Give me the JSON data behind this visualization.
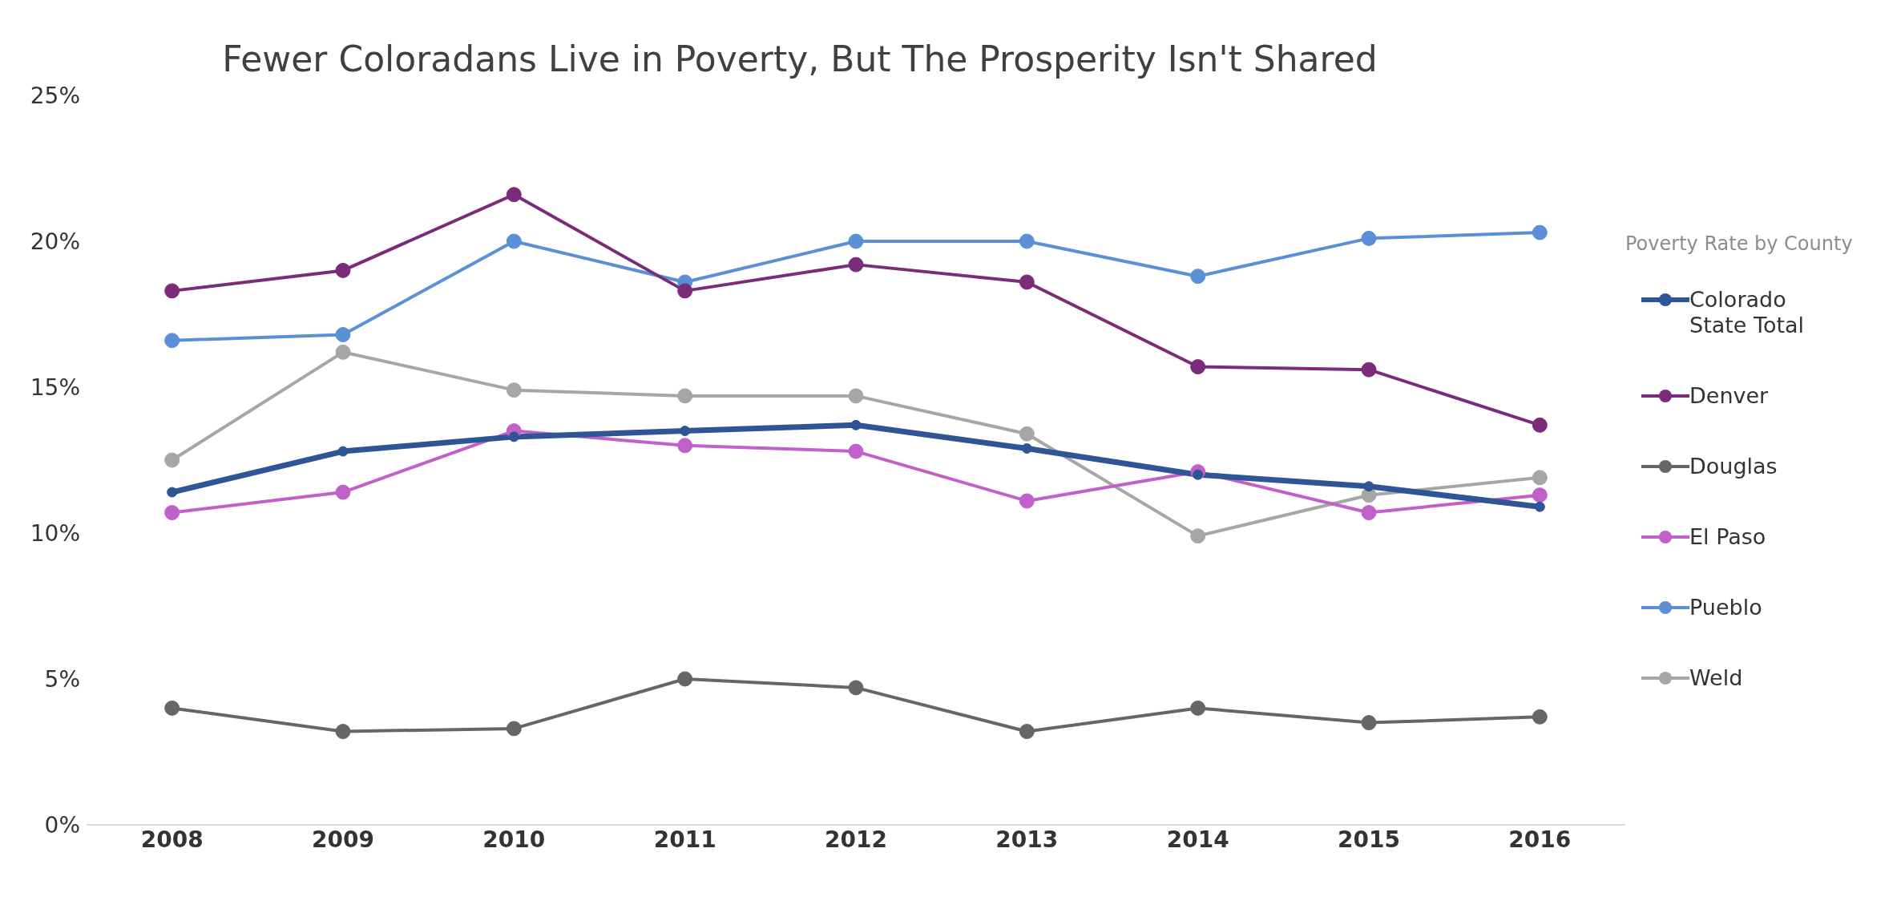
{
  "chart_data": {
    "type": "line",
    "title": "Fewer Coloradans Live in Poverty, But The Prosperity Isn't Shared",
    "legend_title": "Poverty Rate by County",
    "categories": [
      "2008",
      "2009",
      "2010",
      "2011",
      "2012",
      "2013",
      "2014",
      "2015",
      "2016"
    ],
    "series": [
      {
        "name": "Colorado State Total",
        "color": "#2e5596",
        "values": [
          11.4,
          12.8,
          13.3,
          13.5,
          13.7,
          12.9,
          12.0,
          11.6,
          10.9
        ]
      },
      {
        "name": "Denver",
        "color": "#7a2c7a",
        "values": [
          18.3,
          19.0,
          21.6,
          18.3,
          19.2,
          18.6,
          15.7,
          15.6,
          13.7
        ]
      },
      {
        "name": "Douglas",
        "color": "#666666",
        "values": [
          4.0,
          3.2,
          3.3,
          5.0,
          4.7,
          3.2,
          4.0,
          3.5,
          3.7
        ]
      },
      {
        "name": "El Paso",
        "color": "#c060c8",
        "values": [
          10.7,
          11.4,
          13.5,
          13.0,
          12.8,
          11.1,
          12.1,
          10.7,
          11.3
        ]
      },
      {
        "name": "Pueblo",
        "color": "#5b8fd6",
        "values": [
          16.6,
          16.8,
          20.0,
          18.6,
          20.0,
          20.0,
          18.8,
          20.1,
          20.3
        ]
      },
      {
        "name": "Weld",
        "color": "#a6a6a6",
        "values": [
          12.5,
          16.2,
          14.9,
          14.7,
          14.7,
          13.4,
          9.9,
          11.3,
          11.9
        ]
      }
    ],
    "ylim": [
      0,
      25
    ],
    "yticks": [
      {
        "value": 0,
        "label": "0%"
      },
      {
        "value": 5,
        "label": "5%"
      },
      {
        "value": 10,
        "label": "10%"
      },
      {
        "value": 15,
        "label": "15%"
      },
      {
        "value": 20,
        "label": "20%"
      },
      {
        "value": 25,
        "label": "25%"
      }
    ],
    "grid": false,
    "legend": "right",
    "marker": "circle",
    "line_style": "solid"
  }
}
